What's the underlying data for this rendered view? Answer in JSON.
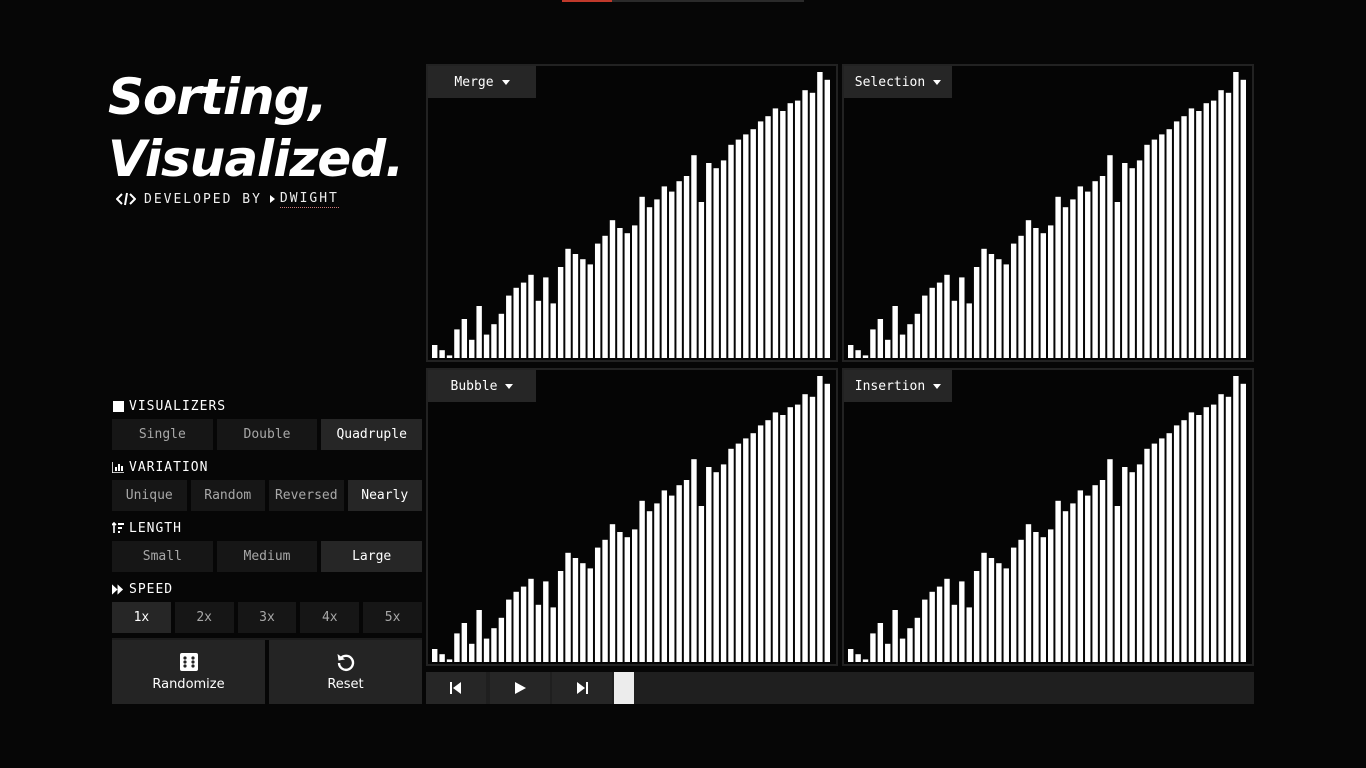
{
  "header": {
    "title_line1": "Sorting,",
    "title_line2": "Visualized.",
    "developed_by": "DEVELOPED BY",
    "author": "DWIGHT"
  },
  "controls": {
    "visualizers": {
      "label": "VISUALIZERS",
      "options": [
        "Single",
        "Double",
        "Quadruple"
      ],
      "selected": "Quadruple"
    },
    "variation": {
      "label": "VARIATION",
      "options": [
        "Unique",
        "Random",
        "Reversed",
        "Nearly"
      ],
      "selected": "Nearly"
    },
    "length": {
      "label": "LENGTH",
      "options": [
        "Small",
        "Medium",
        "Large"
      ],
      "selected": "Large"
    },
    "speed": {
      "label": "SPEED",
      "options": [
        "1x",
        "2x",
        "3x",
        "4x",
        "5x"
      ],
      "selected": "1x"
    },
    "randomize_label": "Randomize",
    "reset_label": "Reset"
  },
  "visualizers": [
    {
      "algorithm": "Merge"
    },
    {
      "algorithm": "Selection"
    },
    {
      "algorithm": "Bubble"
    },
    {
      "algorithm": "Insertion"
    }
  ],
  "array_values": [
    5,
    3,
    1,
    11,
    15,
    7,
    20,
    9,
    13,
    17,
    24,
    27,
    29,
    32,
    22,
    31,
    21,
    35,
    42,
    40,
    38,
    36,
    44,
    47,
    53,
    50,
    48,
    51,
    62,
    58,
    61,
    66,
    64,
    68,
    70,
    78,
    60,
    75,
    73,
    76,
    82,
    84,
    86,
    88,
    91,
    93,
    96,
    95,
    98,
    99,
    103,
    102,
    110,
    107
  ],
  "array_max": 110,
  "player": {
    "progress": 0
  },
  "colors": {
    "background": "#060606",
    "bar": "#ffffff",
    "button": "#161616",
    "button_active": "#262626",
    "accent": "#c0392b"
  },
  "icons": {
    "credit": "code-icon",
    "visualizers": "square-icon",
    "variation": "bar-chart-icon",
    "length": "sort-amount-icon",
    "speed": "fast-forward-icon",
    "randomize": "dice-icon",
    "reset": "undo-icon",
    "step_back": "step-back-icon",
    "play": "play-icon",
    "step_forward": "step-forward-icon"
  }
}
